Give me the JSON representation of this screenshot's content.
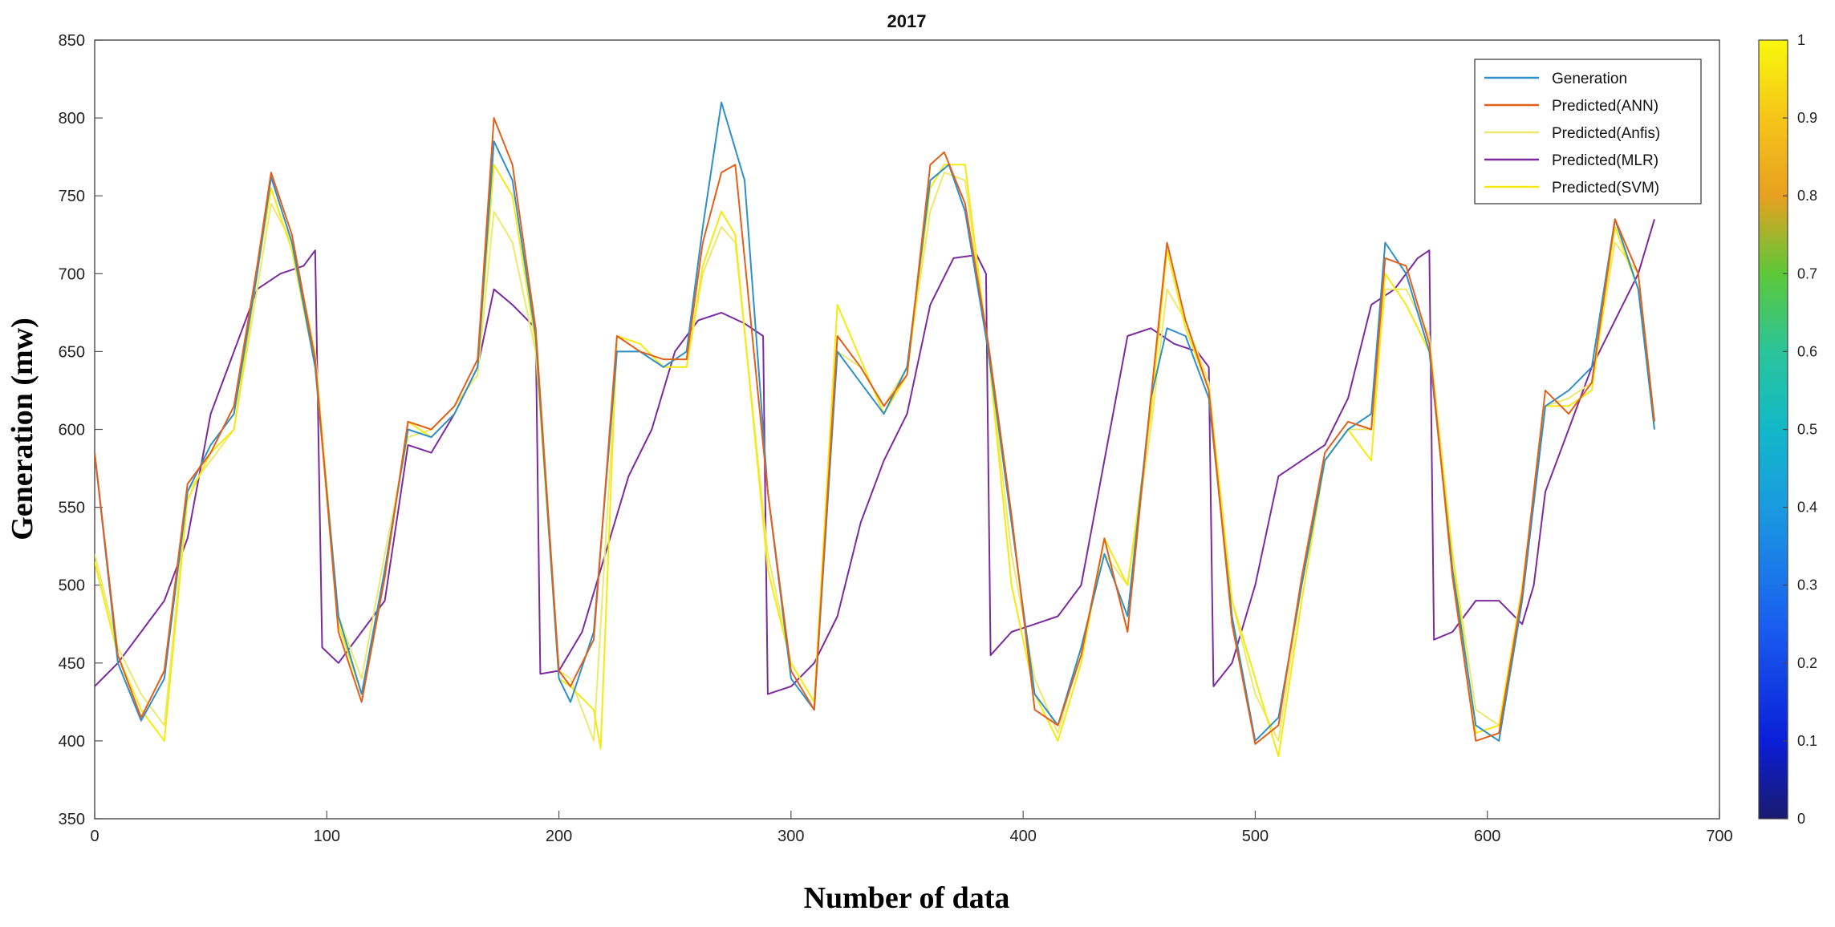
{
  "chart_data": {
    "type": "line",
    "title": "2017",
    "xlabel": "Number of data",
    "ylabel": "Generation (mw)",
    "xlim": [
      0,
      700
    ],
    "ylim": [
      350,
      850
    ],
    "xticks": [
      0,
      100,
      200,
      300,
      400,
      500,
      600,
      700
    ],
    "yticks": [
      350,
      400,
      450,
      500,
      550,
      600,
      650,
      700,
      750,
      800,
      850
    ],
    "grid": false,
    "legend_position": "top-right",
    "colorbar": {
      "ticks": [
        0,
        0.1,
        0.2,
        0.3,
        0.4,
        0.5,
        0.6,
        0.7,
        0.8,
        0.9,
        1
      ],
      "tick_labels": [
        "0",
        "0.1",
        "0.2",
        "0.3",
        "0.4",
        "0.5",
        "0.6",
        "0.7",
        "0.8",
        "0.9",
        "1"
      ],
      "colormap": "parula"
    },
    "series": [
      {
        "name": "Generation",
        "color": "#2e8fc9",
        "x": [
          0,
          10,
          20,
          30,
          40,
          50,
          60,
          70,
          76,
          85,
          95,
          105,
          115,
          125,
          135,
          145,
          155,
          165,
          172,
          180,
          190,
          200,
          205,
          215,
          225,
          235,
          245,
          255,
          262,
          270,
          280,
          290,
          300,
          310,
          320,
          330,
          340,
          350,
          360,
          368,
          375,
          385,
          395,
          405,
          415,
          425,
          435,
          445,
          455,
          462,
          470,
          480,
          490,
          500,
          510,
          520,
          530,
          540,
          550,
          556,
          565,
          575,
          585,
          595,
          605,
          615,
          625,
          635,
          645,
          655,
          665,
          672
        ],
        "y": [
          585,
          450,
          413,
          440,
          560,
          590,
          610,
          700,
          762,
          720,
          640,
          480,
          430,
          510,
          600,
          595,
          610,
          640,
          785,
          760,
          660,
          440,
          425,
          470,
          650,
          650,
          640,
          650,
          730,
          810,
          760,
          560,
          440,
          420,
          650,
          630,
          610,
          640,
          760,
          770,
          740,
          650,
          540,
          430,
          410,
          460,
          520,
          480,
          620,
          665,
          660,
          620,
          480,
          400,
          415,
          500,
          580,
          600,
          610,
          720,
          700,
          650,
          510,
          410,
          400,
          490,
          615,
          625,
          640,
          735,
          690,
          600
        ]
      },
      {
        "name": "Predicted(ANN)",
        "color": "#e2601a",
        "x": [
          0,
          10,
          20,
          30,
          40,
          50,
          60,
          70,
          76,
          85,
          95,
          105,
          115,
          125,
          135,
          145,
          155,
          165,
          172,
          180,
          190,
          200,
          205,
          215,
          225,
          235,
          245,
          255,
          262,
          270,
          276,
          290,
          300,
          310,
          320,
          330,
          340,
          350,
          360,
          366,
          375,
          385,
          395,
          405,
          415,
          425,
          435,
          445,
          455,
          462,
          470,
          480,
          490,
          500,
          510,
          520,
          530,
          540,
          550,
          556,
          565,
          575,
          585,
          595,
          605,
          615,
          625,
          635,
          645,
          655,
          665,
          672
        ],
        "y": [
          585,
          455,
          415,
          445,
          565,
          585,
          615,
          705,
          765,
          725,
          645,
          470,
          425,
          505,
          605,
          600,
          615,
          645,
          800,
          770,
          665,
          445,
          435,
          465,
          660,
          650,
          645,
          645,
          720,
          765,
          770,
          560,
          445,
          420,
          660,
          640,
          615,
          635,
          770,
          778,
          745,
          655,
          545,
          420,
          410,
          455,
          530,
          470,
          620,
          720,
          670,
          625,
          475,
          398,
          410,
          505,
          585,
          605,
          600,
          710,
          705,
          655,
          505,
          400,
          405,
          495,
          625,
          610,
          630,
          735,
          700,
          605
        ]
      },
      {
        "name": "Predicted(Anfis)",
        "color": "#ede96e",
        "x": [
          0,
          10,
          20,
          30,
          40,
          50,
          60,
          70,
          76,
          85,
          95,
          105,
          115,
          125,
          135,
          145,
          155,
          165,
          172,
          180,
          190,
          200,
          205,
          215,
          225,
          235,
          245,
          255,
          262,
          270,
          276,
          290,
          300,
          310,
          320,
          330,
          340,
          350,
          360,
          366,
          375,
          385,
          395,
          405,
          415,
          425,
          435,
          445,
          455,
          462,
          470,
          480,
          490,
          500,
          510,
          520,
          530,
          540,
          550,
          556,
          565,
          575,
          585,
          595,
          605,
          615,
          625,
          635,
          645,
          655,
          665,
          672
        ],
        "y": [
          520,
          460,
          430,
          410,
          560,
          580,
          600,
          690,
          745,
          720,
          650,
          480,
          440,
          520,
          595,
          600,
          615,
          635,
          740,
          720,
          650,
          445,
          440,
          400,
          650,
          650,
          640,
          640,
          700,
          730,
          720,
          520,
          450,
          425,
          650,
          640,
          615,
          640,
          740,
          765,
          760,
          650,
          520,
          440,
          405,
          460,
          520,
          500,
          600,
          690,
          670,
          630,
          490,
          430,
          400,
          500,
          580,
          600,
          600,
          690,
          690,
          660,
          520,
          420,
          410,
          500,
          615,
          620,
          630,
          720,
          700,
          605
        ]
      },
      {
        "name": "Predicted(MLR)",
        "color": "#7c2aa0",
        "x": [
          0,
          10,
          20,
          30,
          40,
          50,
          60,
          70,
          80,
          90,
          95,
          98,
          105,
          115,
          125,
          135,
          145,
          155,
          165,
          172,
          180,
          190,
          192,
          200,
          210,
          220,
          230,
          240,
          250,
          260,
          270,
          280,
          288,
          290,
          300,
          310,
          320,
          330,
          340,
          350,
          360,
          370,
          380,
          384,
          386,
          395,
          405,
          415,
          425,
          435,
          445,
          455,
          465,
          475,
          480,
          482,
          490,
          500,
          510,
          520,
          530,
          540,
          550,
          560,
          570,
          575,
          577,
          585,
          595,
          605,
          615,
          620,
          625,
          635,
          645,
          655,
          665,
          672
        ],
        "y": [
          435,
          450,
          470,
          490,
          530,
          610,
          650,
          690,
          700,
          705,
          715,
          460,
          450,
          470,
          490,
          590,
          585,
          610,
          640,
          690,
          680,
          665,
          443,
          445,
          470,
          520,
          570,
          600,
          650,
          670,
          675,
          668,
          660,
          430,
          435,
          450,
          480,
          540,
          580,
          610,
          680,
          710,
          712,
          700,
          455,
          470,
          475,
          480,
          500,
          580,
          660,
          665,
          655,
          650,
          640,
          435,
          450,
          500,
          570,
          580,
          590,
          620,
          680,
          690,
          710,
          715,
          465,
          470,
          490,
          490,
          475,
          500,
          560,
          600,
          640,
          670,
          700,
          735
        ]
      },
      {
        "name": "Predicted(SVM)",
        "color": "#f5ea0f",
        "x": [
          0,
          10,
          20,
          30,
          40,
          50,
          60,
          70,
          76,
          85,
          95,
          105,
          115,
          125,
          135,
          145,
          155,
          165,
          172,
          180,
          190,
          200,
          205,
          215,
          218,
          225,
          235,
          245,
          255,
          262,
          270,
          276,
          290,
          300,
          310,
          320,
          330,
          340,
          350,
          360,
          366,
          375,
          385,
          395,
          405,
          415,
          425,
          435,
          445,
          455,
          462,
          470,
          480,
          490,
          500,
          510,
          520,
          530,
          540,
          550,
          556,
          565,
          575,
          585,
          595,
          605,
          615,
          625,
          635,
          645,
          655,
          665,
          672
        ],
        "y": [
          515,
          455,
          420,
          400,
          555,
          585,
          600,
          700,
          755,
          715,
          640,
          475,
          430,
          505,
          605,
          595,
          610,
          640,
          770,
          750,
          655,
          440,
          435,
          420,
          395,
          660,
          655,
          640,
          640,
          705,
          740,
          725,
          510,
          450,
          425,
          680,
          645,
          610,
          635,
          755,
          770,
          770,
          650,
          500,
          430,
          400,
          450,
          530,
          500,
          610,
          715,
          665,
          625,
          490,
          440,
          390,
          490,
          580,
          600,
          580,
          700,
          680,
          650,
          520,
          405,
          410,
          495,
          615,
          615,
          625,
          730,
          690,
          600
        ]
      }
    ]
  },
  "legend": {
    "entries": [
      "Generation",
      "Predicted(ANN)",
      "Predicted(Anfis)",
      "Predicted(MLR)",
      "Predicted(SVM)"
    ]
  }
}
